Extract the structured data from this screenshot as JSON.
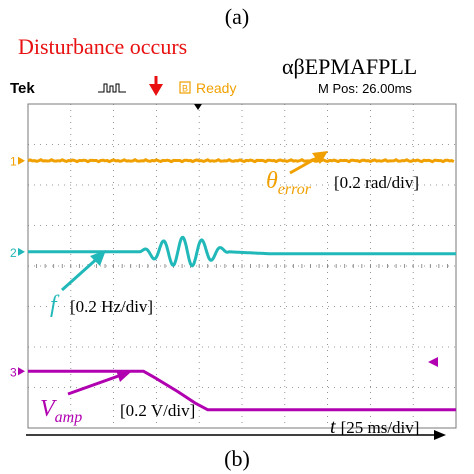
{
  "figure": {
    "top_panel_label": "(a)",
    "bottom_panel_label": "(b)",
    "event_annotation": "Disturbance occurs",
    "method_name": "αβEPMAFPLL"
  },
  "scope": {
    "brand": "Tek",
    "trigger_state": "Ready",
    "trigger_icon": "B",
    "position_readout": "M Pos: 26.00ms",
    "colors": {
      "background": "#ffffff",
      "grid": "#7a7a7a",
      "theta_error": "#f0a000",
      "frequency": "#20b8b8",
      "amplitude": "#b000b0",
      "event_marker": "#e81010"
    }
  },
  "chart_data": {
    "type": "line",
    "title": "αβEPMAFPLL",
    "xlabel": "t [25 ms/div]",
    "x_unit_per_div": "25 ms/div",
    "x_divisions": 10,
    "xlim_div": [
      0,
      10
    ],
    "grid": true,
    "event": {
      "label": "Disturbance occurs",
      "x_div": 2.7
    },
    "series": [
      {
        "name": "θerror",
        "label_main": "θ",
        "label_sub": "error",
        "scale": "[0.2 rad/div]",
        "channel": "1",
        "color": "#f0a000",
        "baseline_div": 6.6,
        "x_div": [
          0,
          10
        ],
        "y_div": [
          0,
          0
        ]
      },
      {
        "name": "f",
        "label_main": "f",
        "label_sub": "",
        "scale": "[0.2 Hz/div]",
        "channel": "2",
        "color": "#20b8b8",
        "baseline_div": 4.35,
        "x_div": [
          0,
          2.6,
          2.8,
          3.0,
          3.2,
          3.4,
          3.6,
          3.8,
          4.0,
          4.2,
          4.4,
          4.8,
          10
        ],
        "y_div": [
          0,
          0,
          0.1,
          -0.3,
          0.35,
          -0.35,
          0.35,
          -0.3,
          0.2,
          -0.05,
          0.08,
          0,
          -0.05
        ]
      },
      {
        "name": "Vamp",
        "label_main": "V",
        "label_sub": "amp",
        "scale": "[0.2 V/div]",
        "channel": "3",
        "color": "#b000b0",
        "baseline_div": 1.4,
        "x_div": [
          0,
          2.7,
          3.0,
          3.5,
          3.9,
          4.2,
          10
        ],
        "y_div": [
          0,
          0,
          -0.18,
          -0.5,
          -0.78,
          -0.95,
          -0.95
        ]
      }
    ]
  }
}
